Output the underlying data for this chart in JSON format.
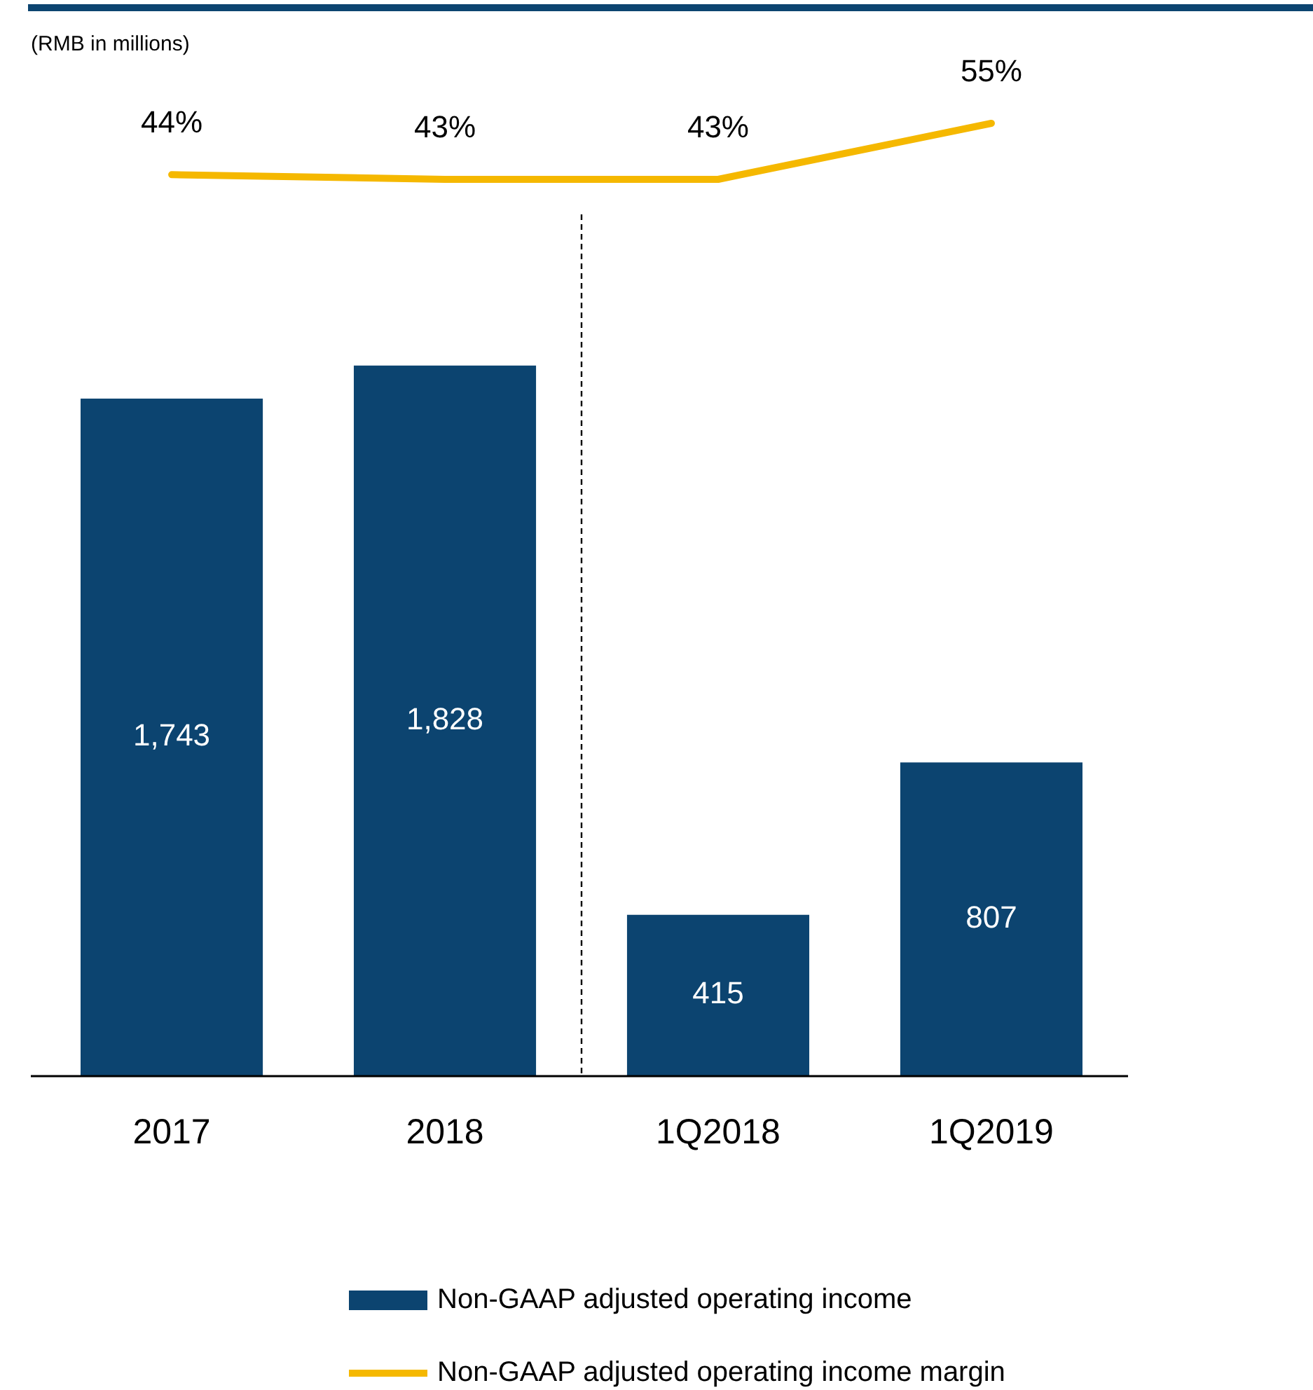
{
  "chart_data": [
    {
      "type": "line",
      "categories": [
        null,
        null,
        null,
        null
      ],
      "series": [
        {
          "name": "Non-GAAP adjusted operating income margin",
          "color": "#f5b800",
          "values": [
            44,
            43,
            43,
            55
          ],
          "value_labels": [
            "44%",
            "43%",
            "43%",
            "55%"
          ]
        }
      ],
      "data_labels": true,
      "legend": "bottom",
      "marker": "none"
    },
    {
      "type": "bar",
      "categories": [
        "2017",
        "2018",
        "1Q2018",
        "1Q2019"
      ],
      "series": [
        {
          "name": "Non-GAAP adjusted operating income",
          "color": "#0c4470",
          "values": [
            1743,
            1828,
            415,
            807
          ],
          "value_labels": [
            "1,743",
            "1,828",
            "415",
            "807"
          ]
        }
      ],
      "tick_labels": "x",
      "data_labels": true,
      "legend": "bottom",
      "annotations": [
        "(RMB in millions)"
      ]
    }
  ]
}
